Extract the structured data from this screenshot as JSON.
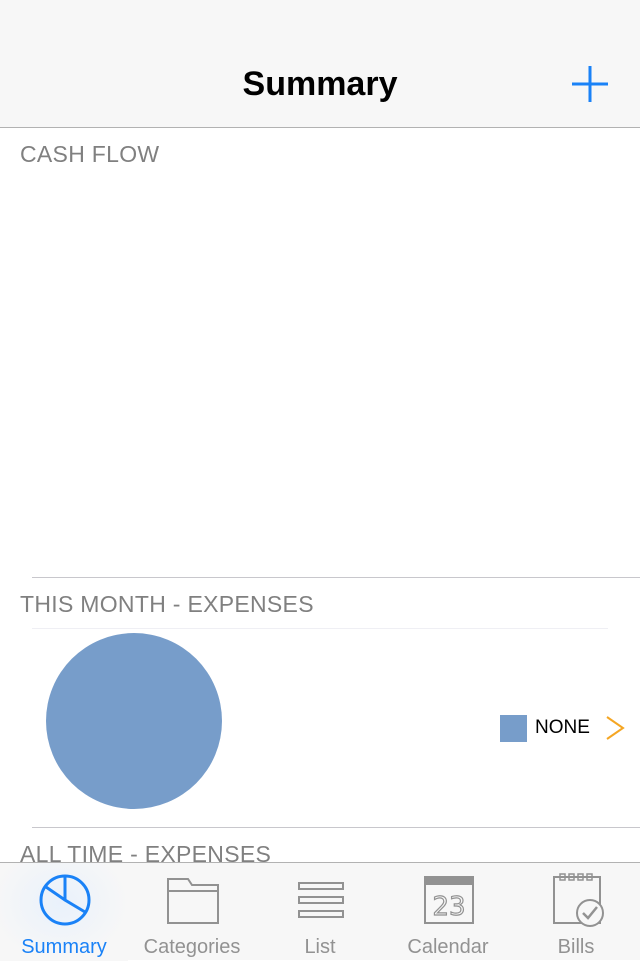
{
  "header": {
    "title": "Summary",
    "add_icon": "plus-icon"
  },
  "sections": {
    "cash_flow": "CASH FLOW",
    "this_month": "THIS MONTH - EXPENSES",
    "all_time": "ALL TIME - EXPENSES"
  },
  "this_month_chart": {
    "legend_label": "NONE",
    "chevron_icon": "chevron-right-icon"
  },
  "chart_data": {
    "type": "pie",
    "categories": [
      "NONE"
    ],
    "values": [
      100
    ],
    "colors": [
      "#779dca"
    ],
    "title": "THIS MONTH - EXPENSES",
    "legend": "right"
  },
  "colors": {
    "accent": "#1a82f7",
    "pie": "#779dca",
    "chevron": "#f5a623",
    "inactive": "#929292"
  },
  "tabs": [
    {
      "label": "Summary",
      "icon": "pie-chart-icon",
      "active": true
    },
    {
      "label": "Categories",
      "icon": "folder-icon",
      "active": false
    },
    {
      "label": "List",
      "icon": "list-icon",
      "active": false
    },
    {
      "label": "Calendar",
      "icon": "calendar-icon",
      "active": false,
      "calendar_day": "23"
    },
    {
      "label": "Bills",
      "icon": "bills-icon",
      "active": false
    }
  ]
}
